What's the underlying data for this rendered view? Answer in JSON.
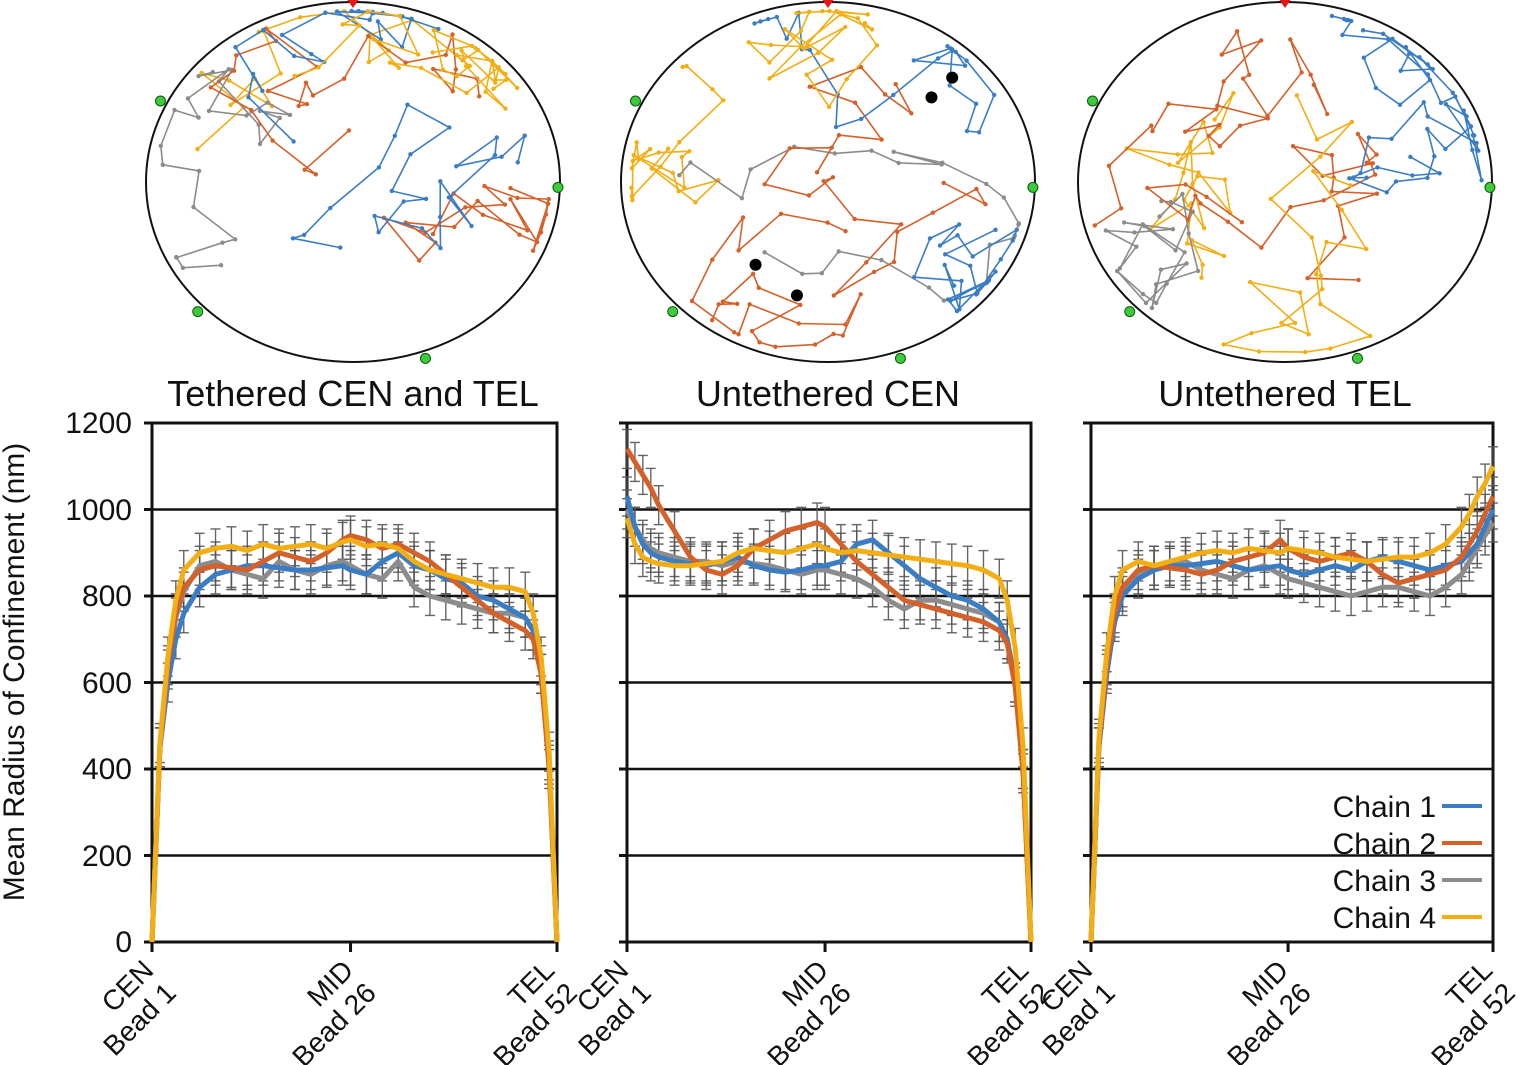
{
  "figure": {
    "ylabel": "Mean Radius of Confinement (nm)",
    "y_ticks": [
      "0",
      "200",
      "400",
      "600",
      "800",
      "1000",
      "1200"
    ],
    "x_ticks": [
      {
        "line1": "CEN",
        "line2": "Bead 1"
      },
      {
        "line1": "MID",
        "line2": "Bead 26"
      },
      {
        "line1": "TEL",
        "line2": "Bead 52"
      }
    ],
    "colors": {
      "Chain 1": "#3b7dc4",
      "Chain 2": "#d4602a",
      "Chain 3": "#8c8c8c",
      "Chain 4": "#f2ae12",
      "tether": "#3ccb3c",
      "spindle": "#e01818",
      "marker": "#000000"
    }
  },
  "chart_data": [
    {
      "type": "line",
      "title": "Tethered CEN and TEL",
      "xlabel": "",
      "ylabel": "Mean Radius of Confinement (nm)",
      "x": [
        1,
        2,
        3,
        4,
        5,
        7,
        9,
        11,
        13,
        15,
        17,
        19,
        21,
        23,
        25,
        26,
        28,
        30,
        32,
        34,
        36,
        38,
        40,
        42,
        44,
        46,
        48,
        49,
        50,
        51,
        52
      ],
      "ylim": [
        0,
        1200
      ],
      "xlim": [
        1,
        52
      ],
      "grid": true,
      "error_bars": true,
      "series": [
        {
          "name": "Chain 1",
          "values": [
            0,
            450,
            600,
            700,
            760,
            820,
            850,
            860,
            870,
            870,
            865,
            860,
            860,
            865,
            870,
            860,
            850,
            880,
            900,
            870,
            860,
            840,
            830,
            800,
            790,
            770,
            750,
            720,
            640,
            420,
            0
          ]
        },
        {
          "name": "Chain 2",
          "values": [
            0,
            450,
            640,
            760,
            820,
            860,
            870,
            865,
            860,
            880,
            900,
            890,
            880,
            900,
            930,
            940,
            930,
            910,
            920,
            900,
            880,
            850,
            820,
            790,
            760,
            740,
            720,
            700,
            620,
            410,
            0
          ]
        },
        {
          "name": "Chain 3",
          "values": [
            0,
            450,
            630,
            750,
            810,
            870,
            880,
            860,
            850,
            840,
            880,
            860,
            850,
            870,
            880,
            870,
            850,
            840,
            880,
            820,
            800,
            790,
            780,
            770,
            760,
            760,
            750,
            720,
            620,
            400,
            0
          ]
        },
        {
          "name": "Chain 4",
          "values": [
            0,
            460,
            660,
            790,
            860,
            900,
            910,
            915,
            905,
            920,
            910,
            915,
            920,
            910,
            925,
            930,
            915,
            920,
            910,
            880,
            860,
            850,
            840,
            830,
            820,
            820,
            810,
            760,
            660,
            440,
            0
          ]
        }
      ]
    },
    {
      "type": "line",
      "title": "Untethered CEN",
      "xlabel": "",
      "ylabel": "",
      "x": [
        1,
        2,
        3,
        4,
        5,
        7,
        9,
        11,
        13,
        15,
        17,
        19,
        21,
        23,
        25,
        26,
        28,
        30,
        32,
        34,
        36,
        38,
        40,
        42,
        44,
        46,
        48,
        49,
        50,
        51,
        52
      ],
      "ylim": [
        0,
        1200
      ],
      "xlim": [
        1,
        52
      ],
      "grid": true,
      "error_bars": true,
      "series": [
        {
          "name": "Chain 1",
          "values": [
            1030,
            960,
            920,
            900,
            890,
            880,
            875,
            870,
            880,
            890,
            870,
            860,
            855,
            860,
            870,
            870,
            880,
            920,
            930,
            900,
            870,
            840,
            820,
            800,
            790,
            770,
            740,
            700,
            600,
            400,
            0
          ]
        },
        {
          "name": "Chain 2",
          "values": [
            1140,
            1110,
            1080,
            1050,
            1010,
            950,
            890,
            860,
            850,
            870,
            910,
            930,
            950,
            960,
            970,
            960,
            920,
            880,
            850,
            820,
            790,
            780,
            770,
            760,
            750,
            740,
            720,
            690,
            590,
            390,
            0
          ]
        },
        {
          "name": "Chain 3",
          "values": [
            1000,
            960,
            930,
            910,
            900,
            890,
            880,
            880,
            870,
            880,
            875,
            870,
            860,
            850,
            860,
            860,
            850,
            840,
            820,
            790,
            770,
            790,
            790,
            780,
            770,
            760,
            740,
            700,
            600,
            400,
            0
          ]
        },
        {
          "name": "Chain 4",
          "values": [
            980,
            920,
            890,
            880,
            875,
            870,
            870,
            875,
            880,
            900,
            910,
            905,
            900,
            910,
            920,
            910,
            900,
            905,
            900,
            895,
            890,
            885,
            880,
            875,
            870,
            860,
            840,
            790,
            680,
            450,
            0
          ]
        }
      ]
    },
    {
      "type": "line",
      "title": "Untethered TEL",
      "xlabel": "",
      "ylabel": "",
      "x": [
        1,
        2,
        3,
        4,
        5,
        7,
        9,
        11,
        13,
        15,
        17,
        19,
        21,
        23,
        25,
        26,
        28,
        30,
        32,
        34,
        36,
        38,
        40,
        42,
        44,
        46,
        48,
        49,
        50,
        51,
        52
      ],
      "ylim": [
        0,
        1200
      ],
      "xlim": [
        1,
        52
      ],
      "grid": true,
      "error_bars": true,
      "series": [
        {
          "name": "Chain 1",
          "values": [
            0,
            450,
            620,
            740,
            800,
            840,
            860,
            870,
            870,
            875,
            880,
            870,
            860,
            865,
            870,
            860,
            850,
            860,
            870,
            860,
            880,
            890,
            880,
            870,
            860,
            870,
            880,
            900,
            920,
            960,
            1000
          ]
        },
        {
          "name": "Chain 2",
          "values": [
            0,
            460,
            640,
            760,
            820,
            860,
            870,
            865,
            860,
            850,
            860,
            880,
            890,
            900,
            930,
            910,
            890,
            880,
            890,
            900,
            880,
            850,
            830,
            840,
            850,
            860,
            890,
            920,
            950,
            990,
            1030
          ]
        },
        {
          "name": "Chain 3",
          "values": [
            0,
            450,
            630,
            750,
            810,
            850,
            860,
            870,
            880,
            860,
            850,
            840,
            860,
            870,
            850,
            840,
            830,
            820,
            810,
            800,
            810,
            820,
            820,
            810,
            800,
            820,
            850,
            880,
            910,
            940,
            970
          ]
        },
        {
          "name": "Chain 4",
          "values": [
            0,
            470,
            670,
            800,
            860,
            880,
            870,
            880,
            890,
            900,
            905,
            900,
            910,
            905,
            900,
            910,
            905,
            900,
            890,
            885,
            880,
            885,
            890,
            890,
            900,
            920,
            960,
            990,
            1030,
            1060,
            1100
          ]
        }
      ],
      "legend": "bottom-right"
    }
  ]
}
